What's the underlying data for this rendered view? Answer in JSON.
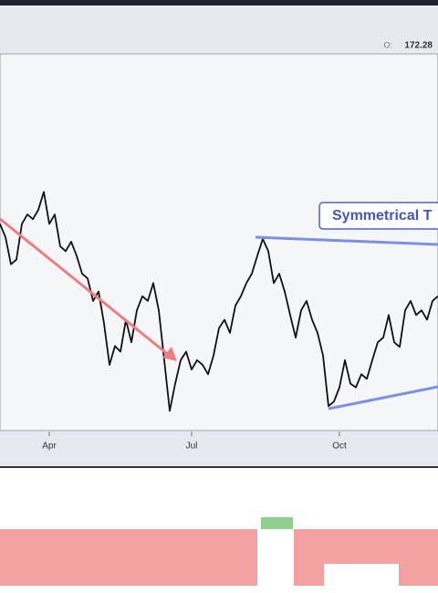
{
  "chart_data": {
    "type": "line",
    "open_label": "O:",
    "open": 172.28,
    "annotation": "Symmetrical T",
    "categories": [
      null,
      null,
      null,
      null,
      null,
      null,
      null,
      null,
      null,
      "Apr",
      null,
      null,
      null,
      null,
      null,
      null,
      null,
      null,
      null,
      null,
      null,
      null,
      null,
      null,
      null,
      null,
      null,
      null,
      null,
      null,
      null,
      null,
      null,
      null,
      null,
      "Jul",
      null,
      null,
      null,
      null,
      null,
      null,
      null,
      null,
      null,
      null,
      null,
      null,
      null,
      null,
      null,
      null,
      null,
      null,
      null,
      null,
      null,
      null,
      null,
      null,
      null,
      null,
      "Oct",
      null,
      null,
      null,
      null,
      null,
      null,
      null,
      null,
      null,
      null,
      null,
      null,
      null,
      null,
      null,
      null,
      null,
      null
    ],
    "values": [
      172.0,
      170.6,
      167.7,
      168.2,
      172.0,
      173.0,
      172.5,
      173.5,
      175.4,
      172.0,
      173.0,
      169.6,
      169.1,
      170.1,
      168.6,
      166.7,
      166.2,
      163.8,
      164.8,
      161.4,
      157.0,
      159.0,
      158.4,
      161.8,
      159.4,
      162.8,
      164.3,
      163.8,
      165.7,
      162.8,
      157.5,
      152.1,
      155.0,
      157.5,
      158.4,
      156.5,
      157.5,
      157.0,
      156.0,
      158.0,
      160.9,
      161.8,
      160.4,
      163.3,
      164.3,
      165.7,
      166.7,
      168.6,
      170.4,
      169.1,
      165.7,
      166.7,
      164.8,
      162.3,
      159.9,
      162.8,
      163.8,
      161.8,
      160.4,
      158.0,
      152.6,
      153.1,
      154.6,
      157.5,
      155.0,
      154.6,
      156.0,
      155.5,
      157.5,
      159.4,
      159.9,
      162.3,
      159.4,
      158.9,
      162.8,
      163.8,
      162.3,
      162.8,
      161.8,
      163.8,
      164.3
    ],
    "color": "#111111",
    "ylim": [
      150,
      190
    ]
  }
}
